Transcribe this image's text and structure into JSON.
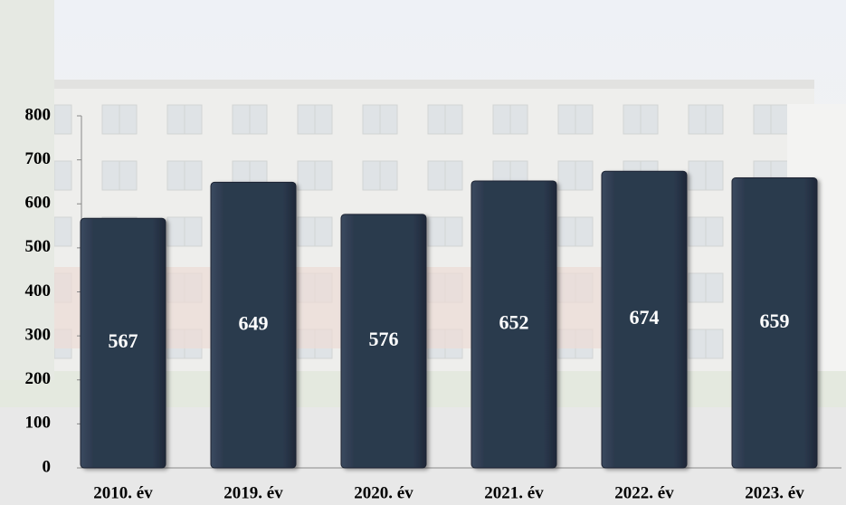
{
  "chart_data": {
    "type": "bar",
    "categories": [
      "2010. év",
      "2019. év",
      "2020. év",
      "2021. év",
      "2022. év",
      "2023. év"
    ],
    "values": [
      567,
      649,
      576,
      652,
      674,
      659
    ],
    "color": "#2c3a4e",
    "ylim": [
      0,
      800
    ],
    "yticks": [
      0,
      100,
      200,
      300,
      400,
      500,
      600,
      700,
      800
    ]
  }
}
